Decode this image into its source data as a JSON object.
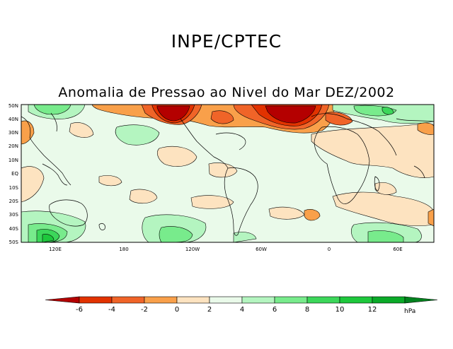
{
  "header": {
    "organization": "INPE/CPTEC",
    "map_title": "Anomalia de Pressao ao Nivel do Mar DEZ/2002"
  },
  "map": {
    "latitude_labels": [
      "50N",
      "40N",
      "30N",
      "20N",
      "10N",
      "EQ",
      "10S",
      "20S",
      "30S",
      "40S",
      "50S"
    ],
    "longitude_labels": [
      "120E",
      "180",
      "120W",
      "60W",
      "0",
      "60E"
    ]
  },
  "colorbar": {
    "ticks": [
      "-6",
      "-4",
      "-2",
      "0",
      "2",
      "4",
      "6",
      "8",
      "10",
      "12"
    ],
    "unit": "hPa",
    "colors": [
      "#b40000",
      "#e23200",
      "#f06428",
      "#f9a04a",
      "#fde3c0",
      "#eafaea",
      "#b4f5c0",
      "#78eb8c",
      "#3cd75a",
      "#1ec83c",
      "#0aaa28",
      "#00821e"
    ]
  }
}
